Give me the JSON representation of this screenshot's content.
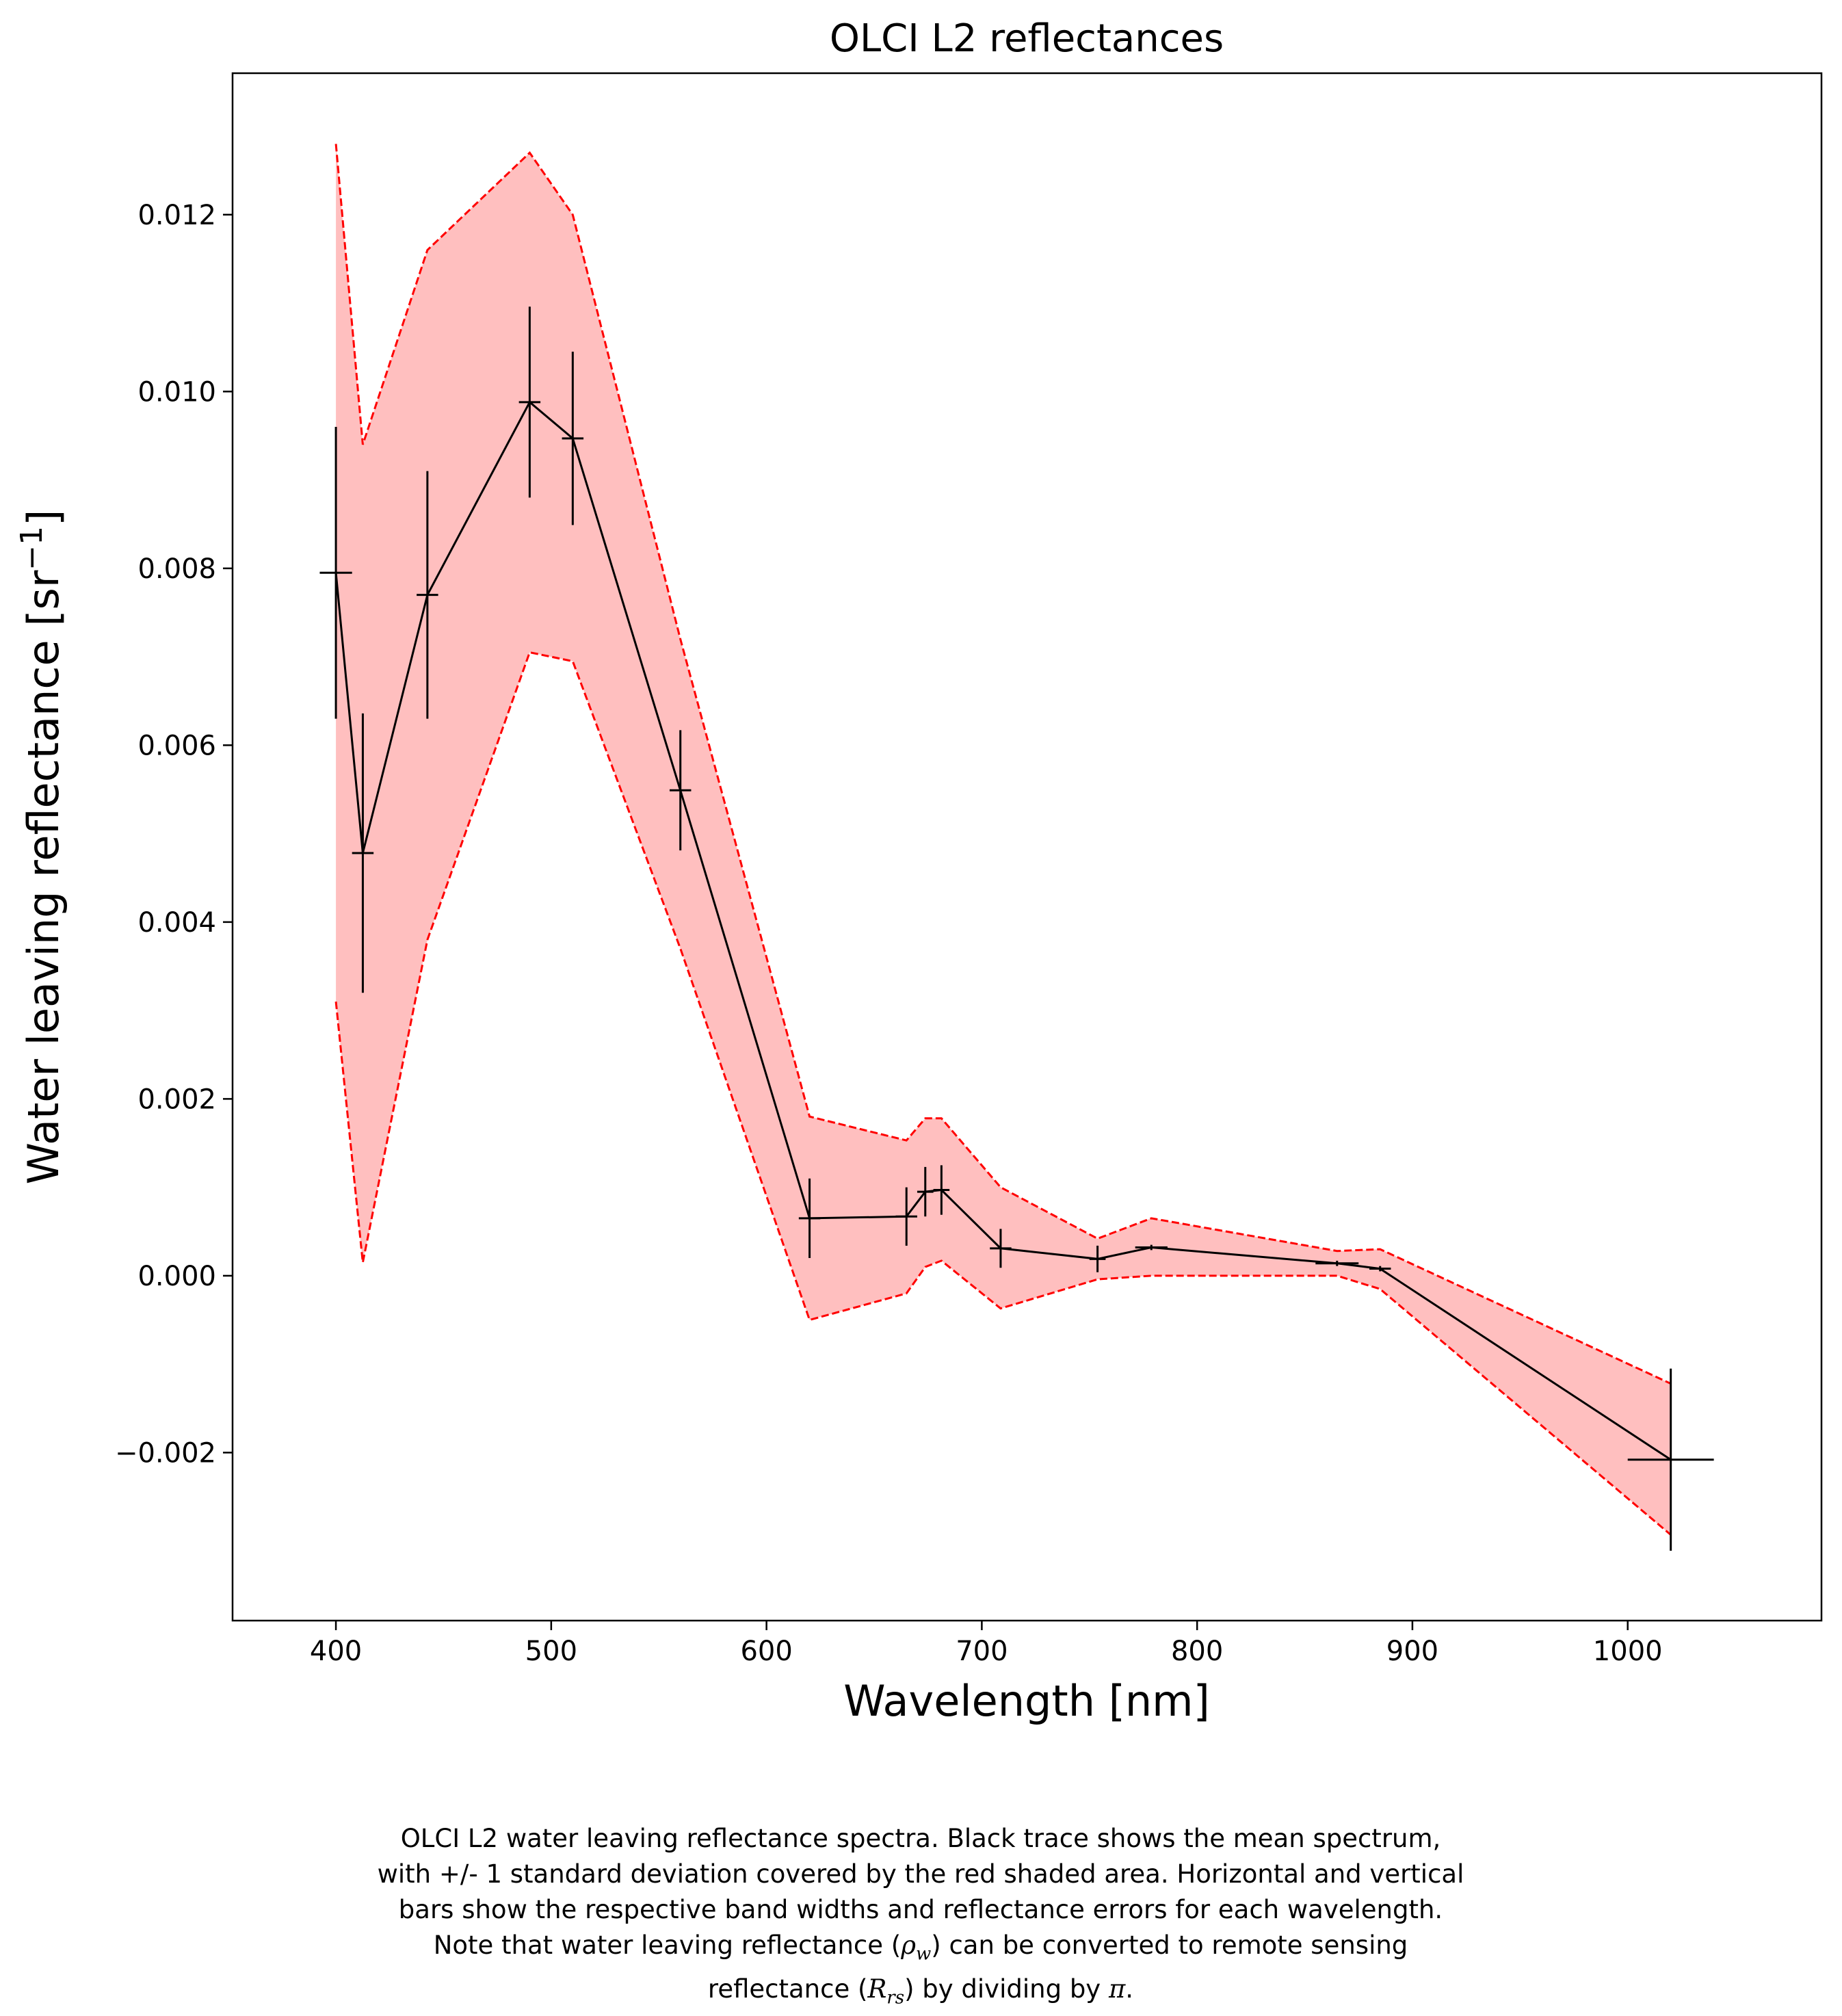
{
  "chart_data": {
    "type": "line",
    "title": "OLCI L2 reflectances",
    "xlabel": "Wavelength [nm]",
    "ylabel_prefix": "Water leaving reflectance [sr",
    "ylabel_sup": "−1",
    "ylabel_suffix": "]",
    "xlim": [
      352,
      1090
    ],
    "ylim": [
      -0.0039,
      0.0136
    ],
    "x_ticks": [
      400,
      500,
      600,
      700,
      800,
      900,
      1000
    ],
    "y_ticks": [
      -0.002,
      0.0,
      0.002,
      0.004,
      0.006,
      0.008,
      0.01,
      0.012
    ],
    "y_tick_labels": [
      "−0.002",
      "0.000",
      "0.002",
      "0.004",
      "0.006",
      "0.008",
      "0.010",
      "0.012"
    ],
    "grid": false,
    "mean_color": "#000000",
    "band_fill_color": "#ffbfbf",
    "band_edge_color": "#ff0000",
    "series": [
      {
        "x": [
          400,
          412.5,
          442.5,
          490,
          510,
          560,
          620,
          665,
          673.75,
          681.25,
          708.75,
          753.75,
          778.75,
          865,
          885,
          1020
        ],
        "mean": [
          0.00795,
          0.00478,
          0.0077,
          0.00988,
          0.00947,
          0.00549,
          0.00065,
          0.00067,
          0.00095,
          0.00097,
          0.00031,
          0.00019,
          0.00032,
          0.00014,
          8e-05,
          -0.00208
        ],
        "upper": [
          0.0128,
          0.0094,
          0.0116,
          0.0127,
          0.012,
          0.0072,
          0.0018,
          0.00153,
          0.00178,
          0.00178,
          0.001,
          0.00042,
          0.00065,
          0.00028,
          0.0003,
          -0.00122
        ],
        "lower": [
          0.0031,
          0.00015,
          0.0038,
          0.00705,
          0.00695,
          0.0037,
          -0.0005,
          -0.0002,
          0.0001,
          0.00017,
          -0.00037,
          -4e-05,
          0.0,
          0.0,
          -0.00015,
          -0.00293
        ],
        "band_width": [
          15,
          10,
          10,
          10,
          10,
          10,
          10,
          10,
          7.5,
          7.5,
          10,
          7.5,
          15,
          20,
          10,
          40
        ],
        "refl_error": [
          0.00165,
          0.00158,
          0.0014,
          0.00108,
          0.00098,
          0.00068,
          0.00045,
          0.00033,
          0.00028,
          0.00028,
          0.00022,
          0.00015,
          3e-05,
          3e-05,
          3e-05,
          0.00103
        ]
      }
    ]
  },
  "caption": {
    "lines": [
      [
        "OLCI L2 water leaving reflectance spectra. Black trace shows the mean spectrum,"
      ],
      [
        "with +/- 1 standard deviation covered by the red shaded area. Horizontal and vertical"
      ],
      [
        "bars show the respective band widths and reflectance errors for each wavelength."
      ],
      [
        "Note that water leaving reflectance (",
        "ρ",
        "w",
        ") can be converted to remote sensing"
      ],
      [
        "reflectance (",
        "R",
        "rs",
        ") by dividing by ",
        "π",
        "."
      ]
    ]
  }
}
